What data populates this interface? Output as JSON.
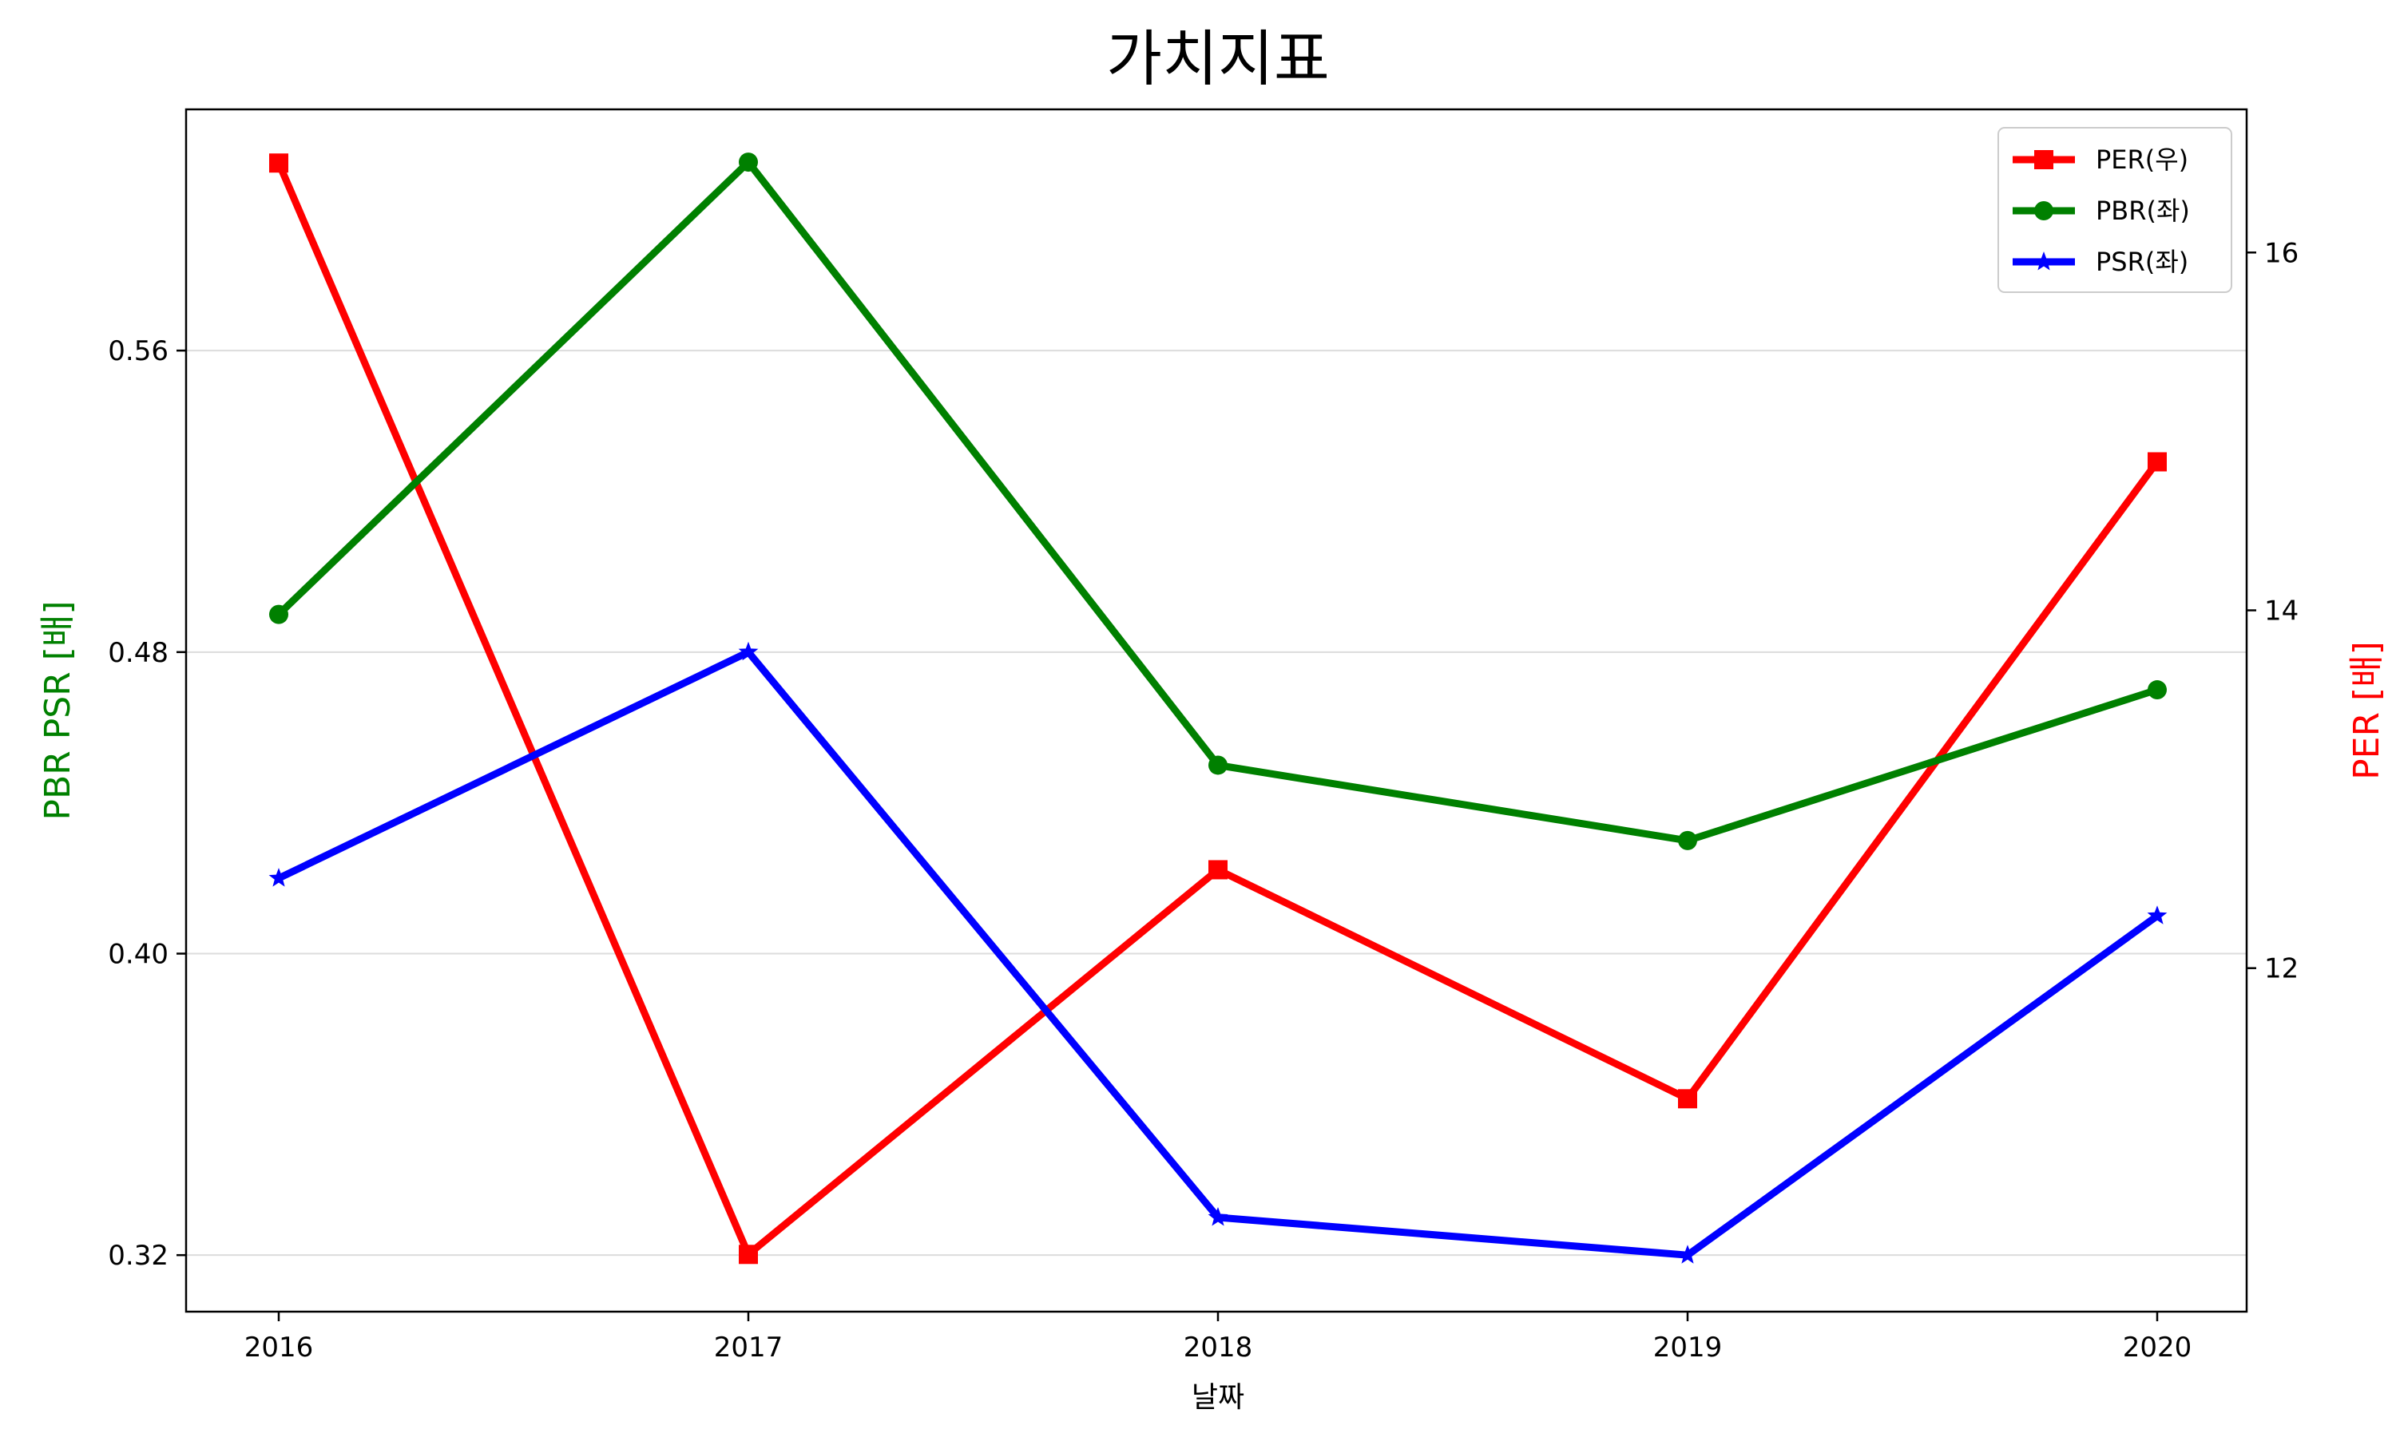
{
  "chart_data": {
    "type": "line",
    "title": "가치지표",
    "xlabel": "날짜",
    "ylabel_left": "PBR PSR [배]",
    "ylabel_right": "PER [배]",
    "categories": [
      "2016",
      "2017",
      "2018",
      "2019",
      "2020"
    ],
    "left_axis": {
      "ylim": [
        0.305,
        0.624
      ],
      "ticks": [
        0.32,
        0.4,
        0.48,
        0.56
      ],
      "tick_labels": [
        "0.32",
        "0.40",
        "0.48",
        "0.56"
      ],
      "grid": true
    },
    "right_axis": {
      "ylim": [
        10.08,
        16.8
      ],
      "ticks": [
        12,
        14,
        16
      ],
      "tick_labels": [
        "12",
        "14",
        "16"
      ]
    },
    "legend_position": "top-right",
    "series": [
      {
        "name": "PER(우)",
        "axis": "right",
        "color": "#ff0000",
        "marker": "square",
        "values": [
          16.5,
          10.4,
          12.55,
          11.27,
          14.83
        ]
      },
      {
        "name": "PBR(좌)",
        "axis": "left",
        "color": "#008000",
        "marker": "circle",
        "values": [
          0.49,
          0.61,
          0.45,
          0.43,
          0.47
        ]
      },
      {
        "name": "PSR(좌)",
        "axis": "left",
        "color": "#0000ff",
        "marker": "star",
        "values": [
          0.42,
          0.48,
          0.33,
          0.32,
          0.41
        ]
      }
    ]
  }
}
